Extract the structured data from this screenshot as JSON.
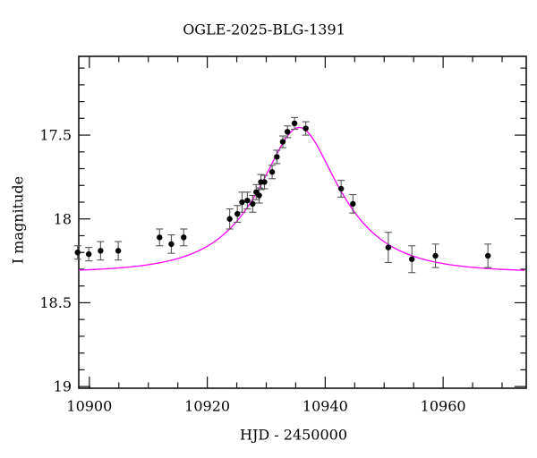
{
  "chart_data": {
    "type": "scatter",
    "title": "OGLE-2025-BLG-1391",
    "xlabel": "HJD - 2450000",
    "ylabel": "I magnitude",
    "x_axis": {
      "range": [
        10898.2,
        10974.1
      ],
      "major_ticks": [
        10900,
        10920,
        10940,
        10960
      ],
      "major_tick_labels": [
        "10900",
        "10920",
        "10940",
        "10960"
      ],
      "minor_tick_step": 5
    },
    "y_axis": {
      "range": [
        17.03,
        19.01
      ],
      "inverted_magnitude_scale": true,
      "major_ticks": [
        17.5,
        18.0,
        18.5,
        19.0
      ],
      "major_tick_labels": [
        "17.5",
        "18",
        "18.5",
        "19"
      ],
      "minor_tick_step": 0.1
    },
    "grid": false,
    "legend": "none",
    "colors": {
      "data_points": "#000000",
      "error_bars": "#555555",
      "model_curve": "#ff00ff",
      "frame": "#111111",
      "background": "#ffffff"
    },
    "points": [
      {
        "t": 10898.0,
        "mag": 18.2,
        "err": 0.04
      },
      {
        "t": 10899.9,
        "mag": 18.21,
        "err": 0.04
      },
      {
        "t": 10901.9,
        "mag": 18.19,
        "err": 0.055
      },
      {
        "t": 10904.9,
        "mag": 18.19,
        "err": 0.055
      },
      {
        "t": 10911.9,
        "mag": 18.11,
        "err": 0.05
      },
      {
        "t": 10913.9,
        "mag": 18.15,
        "err": 0.055
      },
      {
        "t": 10916.0,
        "mag": 18.11,
        "err": 0.05
      },
      {
        "t": 10923.8,
        "mag": 18.0,
        "err": 0.06
      },
      {
        "t": 10925.1,
        "mag": 17.97,
        "err": 0.05
      },
      {
        "t": 10925.9,
        "mag": 17.9,
        "err": 0.06
      },
      {
        "t": 10926.8,
        "mag": 17.89,
        "err": 0.05
      },
      {
        "t": 10927.7,
        "mag": 17.91,
        "err": 0.05
      },
      {
        "t": 10928.3,
        "mag": 17.84,
        "err": 0.045
      },
      {
        "t": 10928.8,
        "mag": 17.86,
        "err": 0.045
      },
      {
        "t": 10929.1,
        "mag": 17.78,
        "err": 0.045
      },
      {
        "t": 10929.7,
        "mag": 17.78,
        "err": 0.04
      },
      {
        "t": 10931.0,
        "mag": 17.72,
        "err": 0.04
      },
      {
        "t": 10931.8,
        "mag": 17.63,
        "err": 0.04
      },
      {
        "t": 10932.8,
        "mag": 17.54,
        "err": 0.035
      },
      {
        "t": 10933.6,
        "mag": 17.48,
        "err": 0.035
      },
      {
        "t": 10934.8,
        "mag": 17.43,
        "err": 0.035
      },
      {
        "t": 10936.7,
        "mag": 17.46,
        "err": 0.04
      },
      {
        "t": 10942.7,
        "mag": 17.82,
        "err": 0.05
      },
      {
        "t": 10944.7,
        "mag": 17.91,
        "err": 0.055
      },
      {
        "t": 10950.7,
        "mag": 18.17,
        "err": 0.09
      },
      {
        "t": 10954.7,
        "mag": 18.24,
        "err": 0.08
      },
      {
        "t": 10958.7,
        "mag": 18.22,
        "err": 0.07
      },
      {
        "t": 10967.6,
        "mag": 18.22,
        "err": 0.07
      }
    ],
    "model": {
      "type": "paczynski",
      "t0": 10935.6,
      "tE": 11.8,
      "u0": 0.49,
      "baseline_mag": 18.32,
      "peak_mag": 17.45
    }
  }
}
